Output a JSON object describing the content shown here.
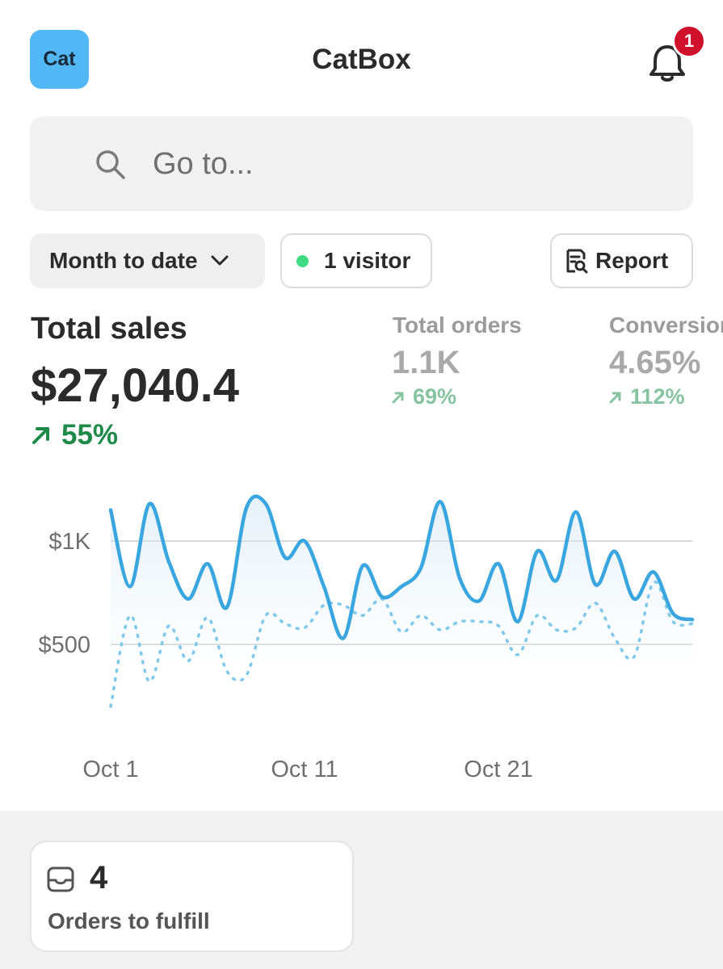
{
  "header": {
    "logo_text": "Cat",
    "app_title": "CatBox",
    "notification_count": "1"
  },
  "search": {
    "placeholder": "Go to..."
  },
  "filters": {
    "date_range": "Month to date",
    "visitors": "1 visitor",
    "report": "Report"
  },
  "metrics": {
    "total_sales": {
      "label": "Total sales",
      "value": "$27,040.4",
      "change": "55%"
    },
    "total_orders": {
      "label": "Total orders",
      "value": "1.1K",
      "change": "69%"
    },
    "conversion": {
      "label": "Conversion",
      "value": "4.65%",
      "change": "112%"
    }
  },
  "chart_data": {
    "type": "line",
    "title": "",
    "xlabel": "",
    "ylabel": "",
    "x_ticks": [
      "Oct 1",
      "Oct 11",
      "Oct 21"
    ],
    "y_ticks": [
      "$1K",
      "$500"
    ],
    "ylim": [
      150,
      1400
    ],
    "series": [
      {
        "values": [
          1150,
          780,
          1180,
          900,
          720,
          890,
          680,
          1160,
          1180,
          920,
          1000,
          780,
          530,
          880,
          730,
          780,
          870,
          1190,
          820,
          710,
          890,
          610,
          950,
          810,
          1140,
          790,
          950,
          720,
          850,
          650,
          620
        ],
        "color": "#3aa6e0",
        "style": "solid"
      },
      {
        "values": [
          200,
          640,
          320,
          590,
          420,
          630,
          370,
          350,
          640,
          600,
          580,
          690,
          690,
          640,
          720,
          560,
          640,
          570,
          610,
          610,
          590,
          450,
          640,
          570,
          580,
          700,
          530,
          440,
          800,
          610,
          600
        ],
        "color": "#7ec8ec",
        "style": "dotted"
      }
    ]
  },
  "orders_card": {
    "count": "4",
    "label": "Orders to fulfill"
  },
  "colors": {
    "accent": "#52b7f5",
    "badge": "#d0112b",
    "positive": "#1e8a4a",
    "positive_muted": "#86c3a0",
    "live_dot": "#3ddc84"
  }
}
